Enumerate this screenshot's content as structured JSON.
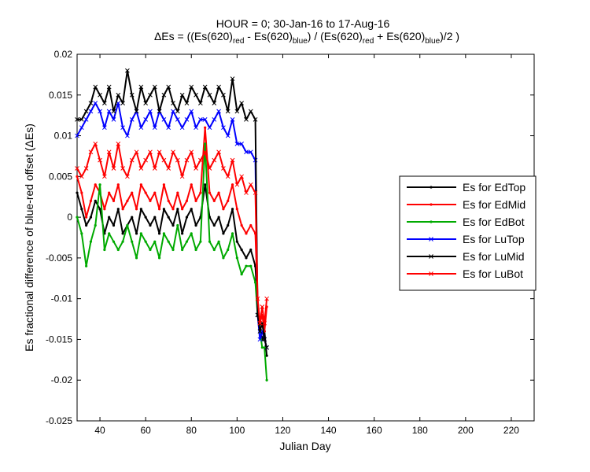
{
  "chart_data": {
    "type": "line",
    "title_line1": "HOUR = 0; 30-Jan-16 to 17-Aug-16",
    "title_line2": {
      "prefix": "ΔEs = ((Es(620)",
      "sub_red": "red",
      "minus": " - Es(620)",
      "sub_blue": "blue",
      "div": ") / (Es(620)",
      "sub_red2": "red",
      "plus": " + Es(620)",
      "sub_blue2": "blue",
      "suffix": ")/2  )"
    },
    "xlabel": "Julian Day",
    "ylabel": "Es fractional difference of blue-red offset (ΔEs)",
    "xlim": [
      30,
      230
    ],
    "ylim": [
      -0.025,
      0.02
    ],
    "xticks": [
      40,
      60,
      80,
      100,
      120,
      140,
      160,
      180,
      200,
      220
    ],
    "yticks": [
      -0.025,
      -0.02,
      -0.015,
      -0.01,
      -0.005,
      0,
      0.005,
      0.01,
      0.015,
      0.02
    ],
    "ytick_labels": [
      "-0.025",
      "-0.02",
      "-0.015",
      "-0.01",
      "-0.005",
      "0",
      "0.005",
      "0.01",
      "0.015",
      "0.02"
    ],
    "grid": false,
    "legend_position": "right",
    "x": [
      30,
      32,
      34,
      36,
      38,
      40,
      42,
      44,
      46,
      48,
      50,
      52,
      54,
      56,
      58,
      60,
      62,
      64,
      66,
      68,
      70,
      72,
      74,
      76,
      78,
      80,
      82,
      84,
      86,
      88,
      90,
      92,
      94,
      96,
      98,
      100,
      102,
      104,
      106,
      108,
      109,
      110,
      111,
      112,
      113
    ],
    "series": [
      {
        "name": "Es for EdTop",
        "color": "#000000",
        "marker": "dot",
        "values": [
          0.003,
          0.001,
          -0.001,
          0.0,
          0.002,
          0.001,
          -0.002,
          0.0,
          -0.001,
          0.001,
          -0.002,
          -0.001,
          0.0,
          -0.002,
          0.001,
          0.0,
          -0.001,
          0.0,
          -0.002,
          0.001,
          0.0,
          -0.001,
          0.001,
          -0.002,
          0.0,
          0.001,
          -0.001,
          0.0,
          0.004,
          0.0,
          -0.001,
          0.0,
          -0.002,
          -0.001,
          0.001,
          -0.003,
          -0.004,
          -0.005,
          -0.004,
          -0.006,
          -0.011,
          -0.014,
          -0.015,
          -0.014,
          -0.017
        ]
      },
      {
        "name": "Es for EdMid",
        "color": "#ff0000",
        "marker": "dot",
        "values": [
          0.005,
          0.003,
          0.0,
          0.002,
          0.004,
          0.003,
          0.001,
          0.003,
          0.002,
          0.004,
          0.001,
          0.002,
          0.003,
          0.001,
          0.004,
          0.003,
          0.002,
          0.003,
          0.001,
          0.004,
          0.002,
          0.001,
          0.003,
          0.001,
          0.002,
          0.004,
          0.002,
          0.003,
          0.011,
          0.003,
          0.002,
          0.003,
          0.001,
          0.002,
          0.004,
          0.001,
          -0.001,
          -0.002,
          -0.001,
          -0.002,
          -0.01,
          -0.013,
          -0.012,
          -0.014,
          -0.011
        ]
      },
      {
        "name": "Es for EdBot",
        "color": "#00aa00",
        "marker": "dot",
        "values": [
          0.0,
          -0.002,
          -0.006,
          -0.003,
          -0.001,
          0.004,
          -0.004,
          -0.002,
          -0.003,
          -0.004,
          -0.003,
          -0.001,
          -0.003,
          -0.005,
          -0.002,
          -0.003,
          -0.004,
          -0.003,
          -0.005,
          -0.002,
          -0.003,
          -0.004,
          -0.001,
          -0.004,
          -0.003,
          -0.002,
          -0.004,
          -0.003,
          0.009,
          -0.003,
          -0.004,
          -0.003,
          -0.005,
          -0.004,
          -0.002,
          -0.005,
          -0.007,
          -0.006,
          -0.006,
          -0.008,
          -0.012,
          -0.014,
          -0.016,
          -0.016,
          -0.02
        ]
      },
      {
        "name": "Es for LuTop",
        "color": "#0000ff",
        "marker": "x",
        "values": [
          0.01,
          0.011,
          0.012,
          0.013,
          0.014,
          0.013,
          0.011,
          0.013,
          0.012,
          0.014,
          0.011,
          0.01,
          0.012,
          0.013,
          0.011,
          0.012,
          0.013,
          0.011,
          0.013,
          0.012,
          0.011,
          0.013,
          0.012,
          0.011,
          0.012,
          0.013,
          0.011,
          0.012,
          0.012,
          0.011,
          0.012,
          0.013,
          0.011,
          0.01,
          0.012,
          0.009,
          0.009,
          0.008,
          0.008,
          0.007,
          -0.012,
          -0.015,
          -0.014,
          -0.015,
          -0.016
        ]
      },
      {
        "name": "Es for LuMid",
        "color": "#000000",
        "marker": "x",
        "values": [
          0.012,
          0.012,
          0.013,
          0.014,
          0.016,
          0.015,
          0.014,
          0.016,
          0.013,
          0.015,
          0.014,
          0.018,
          0.015,
          0.013,
          0.016,
          0.014,
          0.015,
          0.016,
          0.013,
          0.015,
          0.016,
          0.014,
          0.013,
          0.015,
          0.014,
          0.016,
          0.015,
          0.014,
          0.016,
          0.015,
          0.014,
          0.016,
          0.015,
          0.013,
          0.017,
          0.013,
          0.014,
          0.012,
          0.013,
          0.012,
          -0.012,
          -0.014,
          -0.013,
          -0.015,
          -0.016
        ]
      },
      {
        "name": "Es for LuBot",
        "color": "#ff0000",
        "marker": "x",
        "values": [
          0.006,
          0.005,
          0.006,
          0.008,
          0.009,
          0.007,
          0.005,
          0.008,
          0.006,
          0.009,
          0.006,
          0.005,
          0.007,
          0.008,
          0.006,
          0.007,
          0.008,
          0.006,
          0.008,
          0.007,
          0.006,
          0.008,
          0.007,
          0.005,
          0.007,
          0.008,
          0.006,
          0.007,
          0.008,
          0.006,
          0.007,
          0.008,
          0.006,
          0.005,
          0.007,
          0.004,
          0.005,
          0.003,
          0.004,
          0.003,
          -0.01,
          -0.013,
          -0.011,
          -0.013,
          -0.01
        ]
      }
    ]
  }
}
